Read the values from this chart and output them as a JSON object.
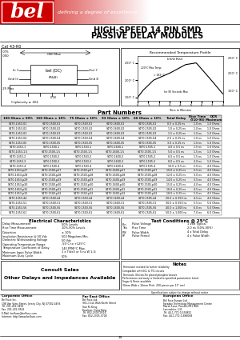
{
  "title_line1": "HIGH-SPEED 14 PIN SMD",
  "title_line2": "PASSIVE DELAY MODULES",
  "cat_number": "Cat 43-R0",
  "part_numbers_title": "Part Numbers",
  "elec_char_title": "Electrical Characteristics",
  "test_cond_title": "Test Conditions @ 25°C",
  "temp_profile_title": "Recommended Temperature Profile",
  "infra_red": "Infra Red",
  "col_headers": [
    "100 Ohms ± 50%",
    "150 Ohms ± 10%",
    "75 Ohms ± 10%",
    "93 Ohms ± 10%",
    "60 Ohms ± 10%",
    "Total Delay",
    "Rise Time\n(T10-90)",
    "DCR\nMaximum"
  ],
  "rows": [
    [
      "S470-1453-01",
      "S470-1500-01",
      "S470-1503-01",
      "S470-1600-01",
      "S470-1505-01",
      "0.5 ± 0.25 ns",
      "1.0 ns",
      "1.0 Ohms"
    ],
    [
      "S470-1453-02",
      "S470-1500-02",
      "S470-1503-02",
      "S470-1600-02",
      "S470-1505-02",
      "1.0 ± 0.25 ns",
      "1.0 ns",
      "1.0 Ohms"
    ],
    [
      "S470-1453-03",
      "S470-1500-03",
      "S470-1503-03",
      "S470-1600-03",
      "S470-1505-03",
      "1.5 ± 0.25 ns",
      "1.0 ns",
      "1.0 Ohms"
    ],
    [
      "S470-1453-04",
      "S470-1500-04",
      "S470-1503-04",
      "S470-1600-04",
      "S470-1505-04",
      "2.0 ± 0.25 ns",
      "1.0 ns",
      "1.0 Ohms"
    ],
    [
      "S470-1453-05",
      "S470-1500-05",
      "S470-1503-05",
      "S470-1600-05",
      "S470-1505-05",
      "3.0 ± 0.25 ns",
      "1.0 ns",
      "1.0 Ohms"
    ],
    [
      "S470-1453-1",
      "S470-1500-1",
      "S470-1503-1",
      "S470-1600-1",
      "S470-1505-1",
      "4.0 ± 0.5 ns",
      "1.5 ns",
      "1.0 Ohms"
    ],
    [
      "S470-1453-1.5",
      "S470-1500-1.5",
      "S470-1503-1.5",
      "S470-1600-1.5",
      "S470-1505-1.5",
      "5.0 ± 0.5 ns",
      "1.5 ns",
      "1.0 Ohms"
    ],
    [
      "S470-1453-2",
      "S470-1500-2",
      "S470-1503-2",
      "S470-1600-2",
      "S470-1505-2",
      "6.0 ± 0.5 ns",
      "1.5 ns",
      "1.0 Ohms"
    ],
    [
      "S470-1453-3",
      "S470-1500-3",
      "S470-1503-3",
      "S470-1600-3",
      "S470-1505-3",
      "8.0 ± 0.5 ns",
      "2.0 ns",
      "1.0 Ohms"
    ],
    [
      "S470-1453-4",
      "S470-1500-4",
      "S470-1503-4",
      "S470-1600-4",
      "S470-1505-4",
      "10.0 ± 0.5 ns",
      "2.0 ns",
      "4.0 Ohms"
    ],
    [
      "S470-1453-p27",
      "S470-1500-p27",
      "S470-1503-p27",
      "S470-1600-p27",
      "S470-1505-p27",
      "10.0 ± 0.25 ns",
      "2.5 ns",
      "4.0 Ohms"
    ],
    [
      "S470-1453-p28",
      "S470-1500-p28",
      "S470-1503-p28",
      "S470-1600-p28",
      "S470-1505-p28",
      "12.0 ± 0.25 ns",
      "3.0 ns",
      "4.0 Ohms"
    ],
    [
      "S470-1453-p29",
      "S470-1500-p29",
      "S470-1503-p29",
      "S470-1600-p29",
      "S470-1505-p29",
      "14.0 ± 0.25 ns",
      "3.5 ns",
      "4.0 Ohms"
    ],
    [
      "S470-1453-p30",
      "S470-1500-p30",
      "S470-1503-p30",
      "S470-1600-p30",
      "S470-1505-p30",
      "15.0 ± 0.25 ns",
      "4.0 ns",
      "4.0 Ohms"
    ],
    [
      "S470-1453-p31",
      "S470-1500-p31",
      "S470-1503-p31",
      "S470-1600-p31",
      "S470-1505-p31",
      "16.0 ± 0.25 ns",
      "4.5 ns",
      "4.0 Ohms"
    ],
    [
      "S470-1453-p32",
      "S470-1500-p32",
      "S470-1503-p32",
      "S470-1600-p32",
      "S470-1505-p32",
      "18.0 ± 0.25 ns",
      "5.0 ns",
      "4.5 Ohms"
    ],
    [
      "S470-1453-44",
      "S470-1500-44",
      "S470-1503-44",
      "S470-1600-44",
      "S470-1505-44",
      "20.0 ± 0.350 ns",
      "4.5 ns",
      "4.0 Ohms"
    ],
    [
      "S470-1453-51",
      "S470-1500-51",
      "S470-1503-51",
      "S470-1600-51",
      "S470-1505-51",
      "30.0 ± 0.350 ns",
      "5.5 ns",
      "5.0 Ohms"
    ],
    [
      "S470-1453-56",
      "S470-1500-56",
      "S470-1503-56",
      "S470-1600-56",
      "S470-1505-56",
      "40.0 ± 1.000 ns",
      "6.0 ns",
      "5.0 Ohms"
    ],
    [
      "S470-1453-61",
      "S470-1500-61",
      "S470-1503-61",
      "S470-1600-61",
      "S470-1505-61",
      "50.0 ± 1.000 ns",
      "7.0 ns",
      "6.0 Ohms"
    ]
  ],
  "elec_items": [
    [
      "Delay Measurement",
      "50% Levels"
    ],
    [
      "Rise Time Measurement",
      "10%-90% Levels"
    ],
    [
      "Distortion",
      "± 10%"
    ],
    [
      "Insulation Resistance @ 50 Vdc",
      "500 Megohms Min."
    ],
    [
      "Dielectric Withstanding Voltage",
      "50 Vdc"
    ],
    [
      "Operating Temperature Range",
      "-55°C to +125°C"
    ],
    [
      "Temperature Coefficient of Delay",
      "140 PPM/°C Max."
    ],
    [
      "Minimum Input Pulse Width",
      "1 x T(del) or 5 ns W 1-G"
    ],
    [
      "Maximum Duty Cycle",
      "50%"
    ]
  ],
  "test_items": [
    [
      "Ein",
      "Pulse Voltage",
      "1 Volt Typical"
    ],
    [
      "Tr/s",
      "Rise Time",
      "2.0 ns (50%-90%)"
    ],
    [
      "PW",
      "Pulse Width",
      "4 x Total Delay"
    ],
    [
      "FP",
      "Pulse Period",
      "4 x Pulse Width"
    ]
  ],
  "notes": [
    "Terminator needed for better reliability",
    "Compatible with ECL & TTL circuits",
    "Terminals: Electro-Tin plated phosphor bronze",
    "Performance warranty is limited to specified parameters listed",
    "Sugar & Resin available",
    "30mm Wide x 16mm Pitch, 200 pieces per 13\" reel"
  ],
  "spec_note": "Specifications subject to change without notice",
  "other_delays_line1": "Other Delays and Impedances Available",
  "other_delays_line2": "Consult Sales",
  "corp_office_title": "Corporate Office",
  "corp_lines": [
    "Bel Fuse Inc.",
    "198 Van Vorst Street, Jersey City, NJ 07302-4456",
    "Tel: 201-432-0463",
    "Fax: 201-432-9542",
    "E-Mail: belfuse@belfuse.com",
    "Internet: http://www.belfuse.com"
  ],
  "fe_office_title": "Far East Office",
  "fe_lines": [
    "Bel Fuse Ltd.",
    "901-3 Lok Wah North Street",
    "San Po Kong",
    "Kowloon, Hong Kong",
    "Tel: 852-2305-0516",
    "Fax: 852-2305-5708"
  ],
  "eu_office_title": "European Office",
  "eu_lines": [
    "Bel Fuse Europe Ltd.",
    "Faraday Technology Management Centre",
    "Marsh Lane, Preston PR1 8UD",
    "Lancashire, U.K.",
    "Tel: 44-1-772-0-558821",
    "Fax: 44-1-772-0-888068"
  ],
  "page_num": "39"
}
